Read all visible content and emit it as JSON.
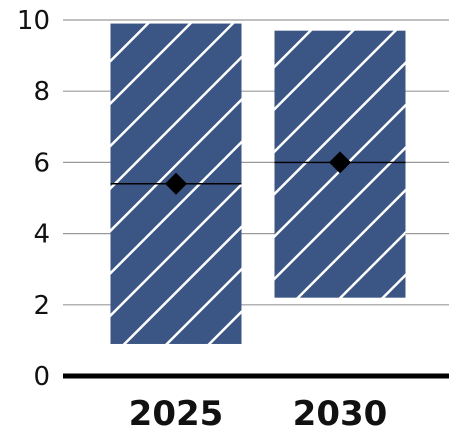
{
  "chart_data": {
    "type": "range-bar",
    "categories": [
      "2025",
      "2030"
    ],
    "ylim": [
      0,
      10
    ],
    "yticks": [
      "0",
      "2",
      "4",
      "6",
      "8",
      "10"
    ],
    "grid": true,
    "legend": "none",
    "series": [
      {
        "low": [
          0.9,
          2.2
        ],
        "high": [
          9.9,
          9.7
        ],
        "midline": [
          5.4,
          6.0
        ],
        "marker": [
          5.4,
          6.0
        ]
      }
    ],
    "colors": {
      "bar_fill": "#3b5585",
      "hatch": "#ffffff",
      "gridline": "#9a9a9a",
      "axis": "#000000",
      "marker": "#000000"
    }
  }
}
